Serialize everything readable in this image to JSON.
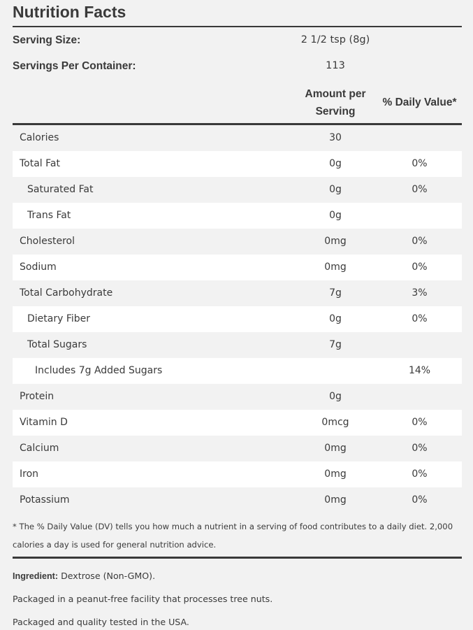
{
  "title": "Nutrition Facts",
  "serving": {
    "size_label": "Serving Size:",
    "size_value": "2 1/2 tsp (8g)",
    "per_container_label": "Servings Per Container:",
    "per_container_value": "113"
  },
  "columns": {
    "amount_line1": "Amount per",
    "amount_line2": "Serving",
    "daily_value": "% Daily Value*"
  },
  "rows": [
    {
      "name": "Calories",
      "amount": "30",
      "dv": "",
      "indent": 0
    },
    {
      "name": "Total Fat",
      "amount": "0g",
      "dv": "0%",
      "indent": 0
    },
    {
      "name": "Saturated Fat",
      "amount": "0g",
      "dv": "0%",
      "indent": 1
    },
    {
      "name": "Trans Fat",
      "amount": "0g",
      "dv": "",
      "indent": 1
    },
    {
      "name": "Cholesterol",
      "amount": "0mg",
      "dv": "0%",
      "indent": 0
    },
    {
      "name": "Sodium",
      "amount": "0mg",
      "dv": "0%",
      "indent": 0
    },
    {
      "name": "Total Carbohydrate",
      "amount": "7g",
      "dv": "3%",
      "indent": 0
    },
    {
      "name": "Dietary Fiber",
      "amount": "0g",
      "dv": "0%",
      "indent": 1
    },
    {
      "name": "Total Sugars",
      "amount": "7g",
      "dv": "",
      "indent": 1
    },
    {
      "name": "Includes 7g Added Sugars",
      "amount": "",
      "dv": "14%",
      "indent": 2
    },
    {
      "name": "Protein",
      "amount": "0g",
      "dv": "",
      "indent": 0
    },
    {
      "name": "Vitamin D",
      "amount": "0mcg",
      "dv": "0%",
      "indent": 0
    },
    {
      "name": "Calcium",
      "amount": "0mg",
      "dv": "0%",
      "indent": 0
    },
    {
      "name": "Iron",
      "amount": "0mg",
      "dv": "0%",
      "indent": 0
    },
    {
      "name": "Potassium",
      "amount": "0mg",
      "dv": "0%",
      "indent": 0
    }
  ],
  "footnote": "* The % Daily Value (DV) tells you how much a nutrient in a serving of food contributes to a daily diet. 2,000 calories a day is used for general nutrition advice.",
  "ingredients": {
    "label": "Ingredient:",
    "value": " Dextrose (Non-GMO)."
  },
  "notes": {
    "allergen": "Packaged in a peanut-free facility that processes tree nuts.",
    "origin": "Packaged and quality tested in the USA."
  }
}
